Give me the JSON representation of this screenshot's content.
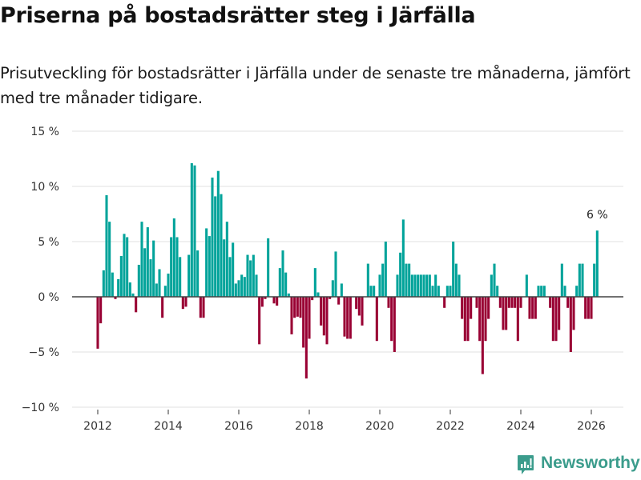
{
  "header": {
    "title": "Priserna på bostadsrätter steg i Järfälla",
    "subtitle": "Prisutveckling för bostadsrätter i Järfälla under de senaste tre månaderna, jämfört med tre månader tidigare."
  },
  "brand": {
    "name": "Newsworthy",
    "color": "#3b9c8c"
  },
  "colors": {
    "positive": "#00a39a",
    "negative": "#990033",
    "zero_line": "#444444",
    "grid": "#e0e0e0"
  },
  "chart_data": {
    "type": "bar",
    "title": "Priserna på bostadsrätter steg i Järfälla",
    "subtitle": "Prisutveckling för bostadsrätter i Järfälla under de senaste tre månaderna, jämfört med tre månader tidigare.",
    "xlabel": "",
    "ylabel": "",
    "x_start": "2012-01",
    "x_end": "2026-03",
    "x_interval": "month",
    "ylim": [
      -10,
      15
    ],
    "yticks": [
      15,
      10,
      5,
      0,
      -5,
      -10
    ],
    "ytick_labels": [
      "15 %",
      "10 %",
      "5 %",
      "0 %",
      "−5 %",
      "−10 %"
    ],
    "xticks": [
      2012,
      2014,
      2016,
      2018,
      2020,
      2022,
      2024,
      2026
    ],
    "xtick_labels": [
      "2012",
      "2014",
      "2016",
      "2018",
      "2020",
      "2022",
      "2024",
      "2026"
    ],
    "grid": true,
    "legend": "none",
    "annotation": {
      "text": "6 %",
      "target": "last"
    },
    "values": [
      -4.7,
      -2.4,
      2.4,
      9.2,
      6.8,
      2.2,
      -0.2,
      1.6,
      3.7,
      5.7,
      5.4,
      1.3,
      0.3,
      -1.4,
      2.9,
      6.8,
      4.4,
      6.3,
      3.4,
      5.1,
      1.2,
      2.5,
      -1.9,
      1.0,
      2.1,
      5.4,
      7.1,
      5.4,
      3.6,
      -1.1,
      -0.9,
      3.8,
      12.1,
      11.9,
      4.2,
      -1.9,
      -1.9,
      6.2,
      5.5,
      10.8,
      9.1,
      11.4,
      9.3,
      5.2,
      6.8,
      3.6,
      4.9,
      1.2,
      1.5,
      2.0,
      1.8,
      3.8,
      3.3,
      3.8,
      2.0,
      -4.3,
      -0.9,
      -0.2,
      5.3,
      0,
      -0.6,
      -0.8,
      2.6,
      4.2,
      2.2,
      0.3,
      -3.4,
      -1.9,
      -1.8,
      -1.9,
      -4.6,
      -7.4,
      -3.8,
      -0.3,
      2.6,
      0.4,
      -2.6,
      -3.5,
      -4.3,
      -0.2,
      1.5,
      4.1,
      -0.7,
      1.2,
      -3.6,
      -3.8,
      -3.8,
      0,
      -1.1,
      -1.7,
      -2.6,
      0,
      3,
      1,
      1,
      -4,
      2,
      3,
      5,
      -1,
      -4,
      -5,
      2,
      4,
      7,
      3,
      3,
      2,
      2,
      2,
      2,
      2,
      2,
      2,
      1,
      2,
      1,
      0,
      -1,
      1,
      1,
      5,
      3,
      2,
      -2,
      -4,
      -4,
      -2,
      0,
      -1,
      -4,
      -7,
      -4,
      -2,
      2,
      3,
      1,
      -1,
      -3,
      -3,
      -1,
      -1,
      -1,
      -4,
      -1,
      0,
      2,
      -2,
      -2,
      -2,
      1,
      1,
      1,
      0,
      -1,
      -4,
      -4,
      -3,
      3,
      1,
      -1,
      -5,
      -3,
      1,
      3,
      3,
      -2,
      -2,
      -2,
      3,
      6
    ]
  }
}
